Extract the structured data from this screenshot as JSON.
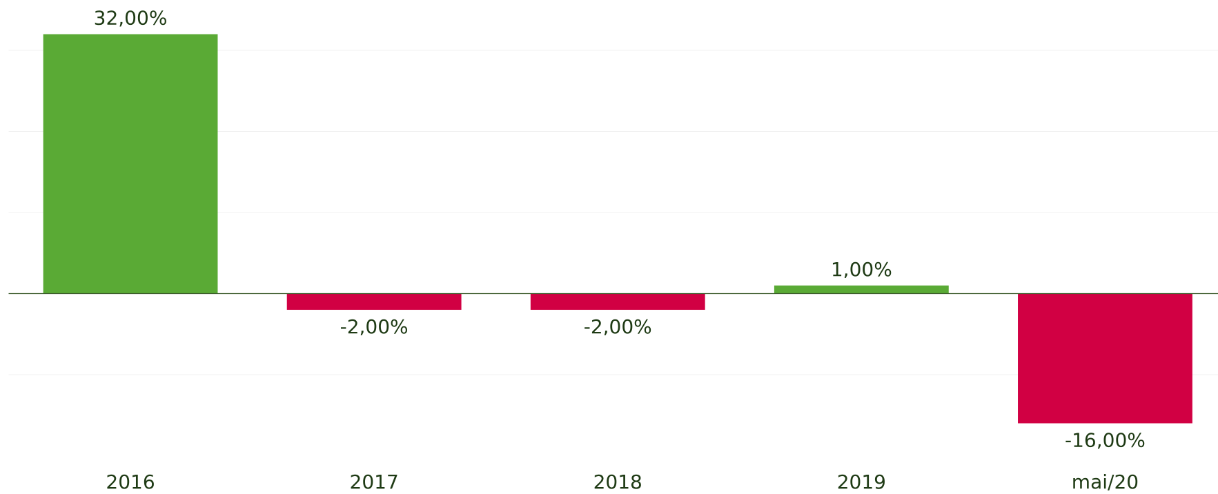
{
  "chart_data": {
    "type": "bar",
    "categories": [
      "2016",
      "2017",
      "2018",
      "2019",
      "mai/20"
    ],
    "values": [
      32,
      -2,
      -2,
      1,
      -16
    ],
    "value_labels": [
      "32,00%",
      "-2,00%",
      "-2,00%",
      "1,00%",
      "-16,00%"
    ],
    "colors": [
      "#5aaa35",
      "#d10043",
      "#d10043",
      "#5aaa35",
      "#d10043"
    ],
    "ylim": [
      -20,
      35
    ],
    "yticks": [
      -10,
      0,
      10,
      20,
      30
    ],
    "grid": true
  }
}
